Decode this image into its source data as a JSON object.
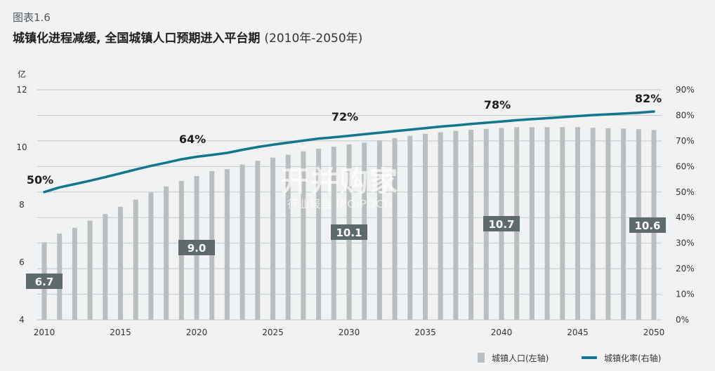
{
  "header": {
    "figure_label": "图表1.6",
    "title": "城镇化进程减缓, 全国城镇人口预期进入平台期",
    "subtitle": "(2010年-2050年)"
  },
  "watermark": {
    "main": "开并购家",
    "sub": "行业报告 IPOIPOCN"
  },
  "legend": {
    "bar": "城镇人口(左轴)",
    "line": "城镇化率(右轴)"
  },
  "colors": {
    "bar": "#b9bfc1",
    "line": "#13768f",
    "label_box": "#5f6a6e",
    "grid": "#c4c8ca"
  },
  "chart_data": {
    "type": "bar",
    "left_axis_unit": "亿",
    "ylim": [
      4,
      12
    ],
    "yticks": [
      4,
      6,
      8,
      10,
      12
    ],
    "y2lim": [
      0,
      90
    ],
    "y2ticks": [
      "0%",
      "10%",
      "20%",
      "30%",
      "40%",
      "50%",
      "60%",
      "70%",
      "80%",
      "90%"
    ],
    "xticks": [
      "2010",
      "2015",
      "2020",
      "2025",
      "2030",
      "2035",
      "2040",
      "2045",
      "2050"
    ],
    "grid": true,
    "categories": [
      2010,
      2011,
      2012,
      2013,
      2014,
      2015,
      2016,
      2017,
      2018,
      2019,
      2020,
      2021,
      2022,
      2023,
      2024,
      2025,
      2026,
      2027,
      2028,
      2029,
      2030,
      2031,
      2032,
      2033,
      2034,
      2035,
      2036,
      2037,
      2038,
      2039,
      2040,
      2041,
      2042,
      2043,
      2044,
      2045,
      2046,
      2047,
      2048,
      2049,
      2050
    ],
    "series": [
      {
        "name": "城镇人口(左轴)",
        "type": "bar",
        "axis": "left",
        "values": [
          6.7,
          7.0,
          7.2,
          7.45,
          7.68,
          7.93,
          8.18,
          8.43,
          8.64,
          8.83,
          9.0,
          9.17,
          9.24,
          9.4,
          9.53,
          9.64,
          9.74,
          9.86,
          9.95,
          10.02,
          10.1,
          10.16,
          10.24,
          10.32,
          10.4,
          10.47,
          10.52,
          10.57,
          10.61,
          10.64,
          10.67,
          10.7,
          10.7,
          10.7,
          10.7,
          10.7,
          10.68,
          10.66,
          10.65,
          10.63,
          10.6
        ]
      },
      {
        "name": "城镇化率(右轴)",
        "type": "line",
        "axis": "right",
        "values": [
          50,
          51.8,
          53.1,
          54.4,
          55.8,
          57.3,
          58.8,
          60.2,
          61.5,
          62.8,
          63.8,
          64.5,
          65.3,
          66.5,
          67.6,
          68.5,
          69.3,
          70.1,
          70.9,
          71.4,
          72.0,
          72.6,
          73.2,
          73.8,
          74.4,
          75.0,
          75.6,
          76.1,
          76.6,
          77.1,
          77.6,
          78.1,
          78.5,
          78.9,
          79.3,
          79.7,
          80.1,
          80.4,
          80.7,
          81.0,
          81.5
        ]
      }
    ],
    "bar_labels": [
      {
        "year": 2010,
        "text": "6.7"
      },
      {
        "year": 2020,
        "text": "9.0"
      },
      {
        "year": 2030,
        "text": "10.1"
      },
      {
        "year": 2040,
        "text": "10.7"
      },
      {
        "year": 2050,
        "text": "10.6"
      }
    ],
    "line_labels": [
      {
        "year": 2010,
        "text": "50%"
      },
      {
        "year": 2020,
        "text": "64%"
      },
      {
        "year": 2030,
        "text": "72%"
      },
      {
        "year": 2040,
        "text": "78%"
      },
      {
        "year": 2050,
        "text": "82%"
      }
    ]
  }
}
